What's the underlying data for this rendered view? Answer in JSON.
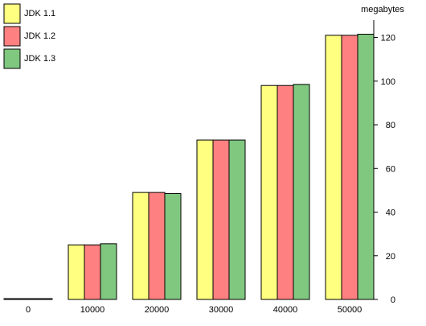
{
  "chart_data": {
    "type": "bar",
    "title": "",
    "xlabel": "",
    "ylabel": "megabytes",
    "categories": [
      "0",
      "10000",
      "20000",
      "30000",
      "40000",
      "50000"
    ],
    "series": [
      {
        "name": "JDK 1.1",
        "color": "#ffff80",
        "values": [
          0.2,
          25,
          49,
          73,
          98,
          121
        ]
      },
      {
        "name": "JDK 1.2",
        "color": "#ff8080",
        "values": [
          0.2,
          25,
          49,
          73,
          98,
          121
        ]
      },
      {
        "name": "JDK 1.3",
        "color": "#80c880",
        "values": [
          0.2,
          25.5,
          48.5,
          73,
          98.5,
          121.5
        ]
      }
    ],
    "ylim": [
      0,
      125
    ],
    "yticks": [
      0,
      20,
      40,
      60,
      80,
      100,
      120
    ],
    "grid": false,
    "legend_position": "top-left",
    "y_axis_side": "right"
  }
}
